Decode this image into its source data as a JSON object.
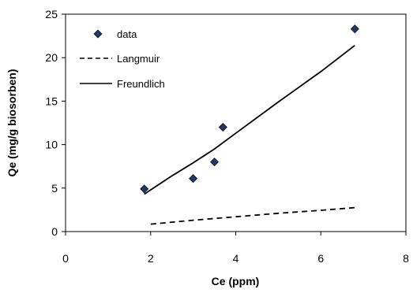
{
  "chart_data": {
    "type": "scatter",
    "title": "",
    "xlabel": "Ce (ppm)",
    "ylabel": "Qe (mg/g biosorben)",
    "xlim": [
      0,
      8
    ],
    "ylim": [
      0,
      25
    ],
    "xticks": [
      0,
      2,
      4,
      6,
      8
    ],
    "yticks": [
      0,
      5,
      10,
      15,
      20,
      25
    ],
    "grid": false,
    "legend_position": "top-left",
    "series": [
      {
        "name": "data",
        "kind": "marker",
        "marker": "diamond",
        "color": "#1f3a68",
        "x": [
          1.85,
          3.0,
          3.5,
          3.7,
          6.8
        ],
        "y": [
          4.9,
          6.1,
          8.0,
          12.0,
          23.3
        ]
      },
      {
        "name": "Langmuir",
        "kind": "line",
        "dash": "dashed",
        "color": "#000000",
        "x": [
          2.0,
          3.0,
          4.0,
          5.0,
          6.0,
          6.8
        ],
        "y": [
          0.85,
          1.3,
          1.7,
          2.1,
          2.45,
          2.75
        ]
      },
      {
        "name": "Freundlich",
        "kind": "line",
        "dash": "solid",
        "color": "#000000",
        "x": [
          1.85,
          2.5,
          3.0,
          3.5,
          4.0,
          5.0,
          6.0,
          6.8
        ],
        "y": [
          4.3,
          6.4,
          7.9,
          9.5,
          11.3,
          14.9,
          18.4,
          21.4
        ]
      }
    ]
  }
}
